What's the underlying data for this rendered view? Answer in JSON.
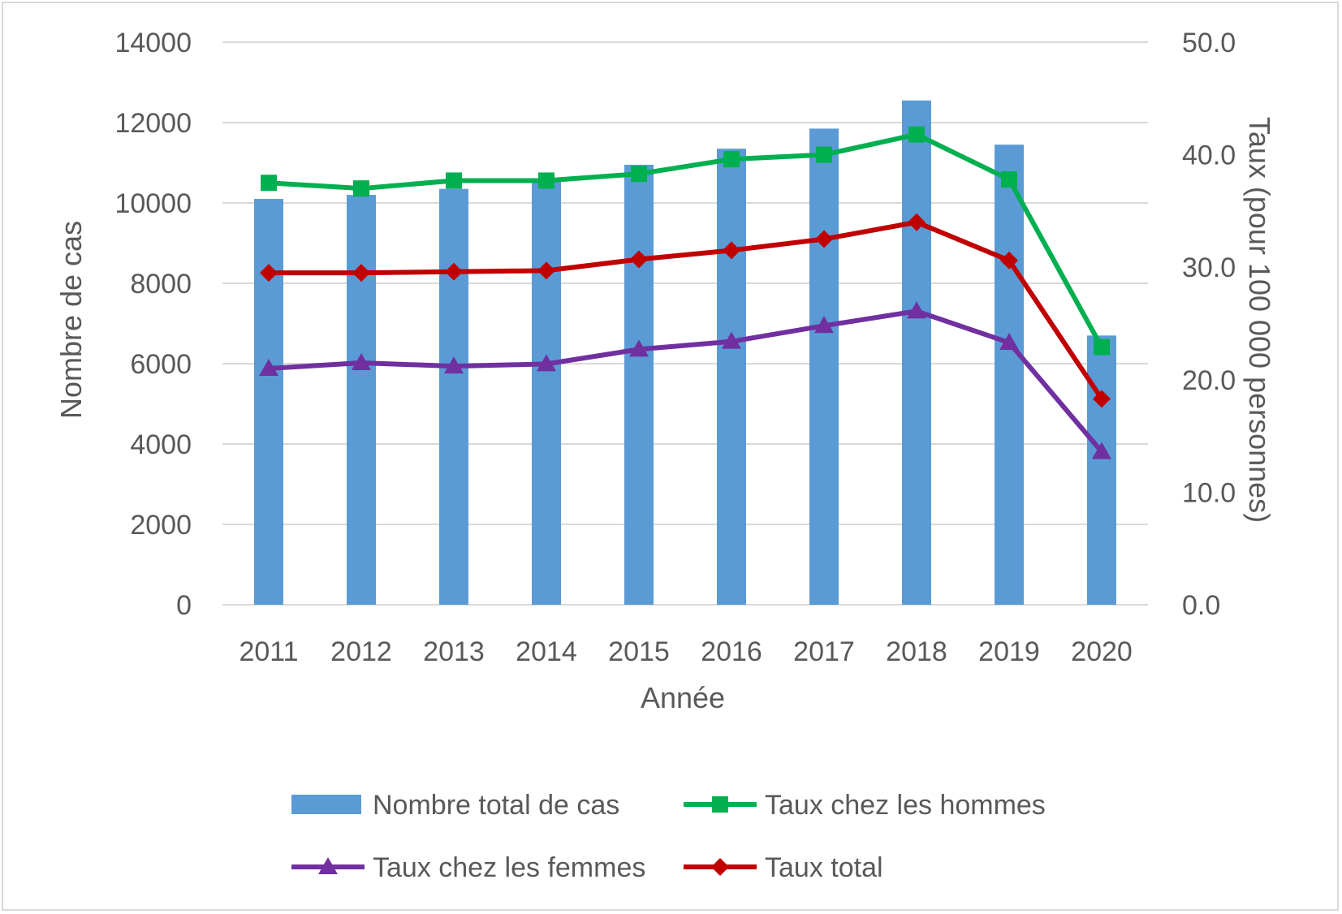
{
  "chart_data": {
    "type": "bar+line",
    "categories": [
      "2011",
      "2012",
      "2013",
      "2014",
      "2015",
      "2016",
      "2017",
      "2018",
      "2019",
      "2020"
    ],
    "xlabel": "Année",
    "ylabel": "Nombre de cas",
    "y2label": "Taux (pour 100 000 personnes)",
    "ylim": [
      0,
      14000
    ],
    "y2lim": [
      0,
      50
    ],
    "y_ticks": [
      "0",
      "2000",
      "4000",
      "6000",
      "8000",
      "10000",
      "12000",
      "14000"
    ],
    "y2_ticks": [
      "0.0",
      "10.0",
      "20.0",
      "30.0",
      "40.0",
      "50.0"
    ],
    "grid": true,
    "legend_position": "bottom",
    "series": [
      {
        "name": "Nombre total de cas",
        "kind": "bar",
        "axis": "left",
        "color": "#5b9bd5",
        "values": [
          10100,
          10200,
          10350,
          10600,
          10950,
          11350,
          11850,
          12550,
          11450,
          6700
        ]
      },
      {
        "name": "Taux chez les hommes",
        "kind": "line",
        "axis": "right",
        "marker": "square",
        "color": "#00b050",
        "values": [
          37.5,
          37.0,
          37.7,
          37.7,
          38.3,
          39.6,
          40.0,
          41.8,
          37.8,
          22.9
        ]
      },
      {
        "name": "Taux chez les femmes",
        "kind": "line",
        "axis": "right",
        "marker": "triangle",
        "color": "#7030a0",
        "values": [
          21.0,
          21.5,
          21.2,
          21.4,
          22.7,
          23.4,
          24.8,
          26.1,
          23.3,
          13.6
        ]
      },
      {
        "name": "Taux total",
        "kind": "line",
        "axis": "right",
        "marker": "diamond",
        "color": "#c00000",
        "values": [
          29.5,
          29.5,
          29.6,
          29.7,
          30.7,
          31.5,
          32.5,
          34.0,
          30.6,
          18.3
        ]
      }
    ]
  }
}
